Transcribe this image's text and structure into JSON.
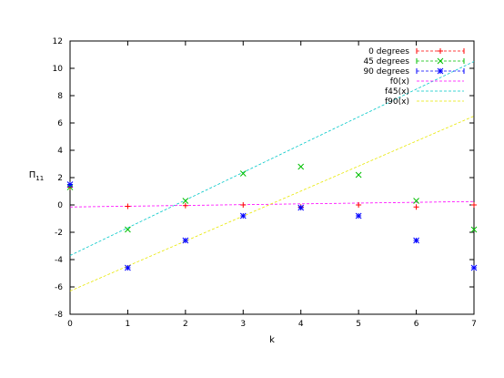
{
  "chart_data": {
    "type": "scatter",
    "xlabel": "k",
    "ylabel": "Π",
    "ylabel_subscript": "11",
    "xlim": [
      0,
      7
    ],
    "ylim": [
      -8,
      12
    ],
    "x_ticks": [
      0,
      1,
      2,
      3,
      4,
      5,
      6,
      7
    ],
    "y_ticks": [
      -8,
      -6,
      -4,
      -2,
      0,
      2,
      4,
      6,
      8,
      10,
      12
    ],
    "grid": false,
    "legend_position": "top-right",
    "series": [
      {
        "name": "0 degrees",
        "color": "#ff0000",
        "marker": "plus",
        "points": [
          {
            "x": 0,
            "y": 1.3
          },
          {
            "x": 1,
            "y": -0.1
          },
          {
            "x": 2,
            "y": -0.05
          },
          {
            "x": 3,
            "y": 0.0
          },
          {
            "x": 4,
            "y": -0.15
          },
          {
            "x": 5,
            "y": 0.0
          },
          {
            "x": 6,
            "y": -0.15
          },
          {
            "x": 7,
            "y": 0.0
          }
        ]
      },
      {
        "name": "45 degrees",
        "color": "#00c000",
        "marker": "x",
        "points": [
          {
            "x": 0,
            "y": 1.3
          },
          {
            "x": 1,
            "y": -1.8
          },
          {
            "x": 2,
            "y": 0.3
          },
          {
            "x": 3,
            "y": 2.3
          },
          {
            "x": 4,
            "y": 2.8
          },
          {
            "x": 5,
            "y": 2.2
          },
          {
            "x": 6,
            "y": 0.3
          },
          {
            "x": 7,
            "y": -1.8
          }
        ]
      },
      {
        "name": "90 degrees",
        "color": "#0000ff",
        "marker": "star",
        "points": [
          {
            "x": 0,
            "y": 1.5
          },
          {
            "x": 1,
            "y": -4.6
          },
          {
            "x": 2,
            "y": -2.6
          },
          {
            "x": 3,
            "y": -0.8
          },
          {
            "x": 4,
            "y": -0.2
          },
          {
            "x": 5,
            "y": -0.8
          },
          {
            "x": 6,
            "y": -2.6
          },
          {
            "x": 7,
            "y": -4.6
          }
        ]
      }
    ],
    "fits": [
      {
        "name": "f0(x)",
        "color": "#ff00ff",
        "x": [
          0,
          7
        ],
        "y": [
          -0.15,
          0.25
        ]
      },
      {
        "name": "f45(x)",
        "color": "#00c8c8",
        "x": [
          0,
          7
        ],
        "y": [
          -3.7,
          10.5
        ]
      },
      {
        "name": "f90(x)",
        "color": "#e8e800",
        "x": [
          0,
          7
        ],
        "y": [
          -6.3,
          6.5
        ]
      }
    ]
  }
}
